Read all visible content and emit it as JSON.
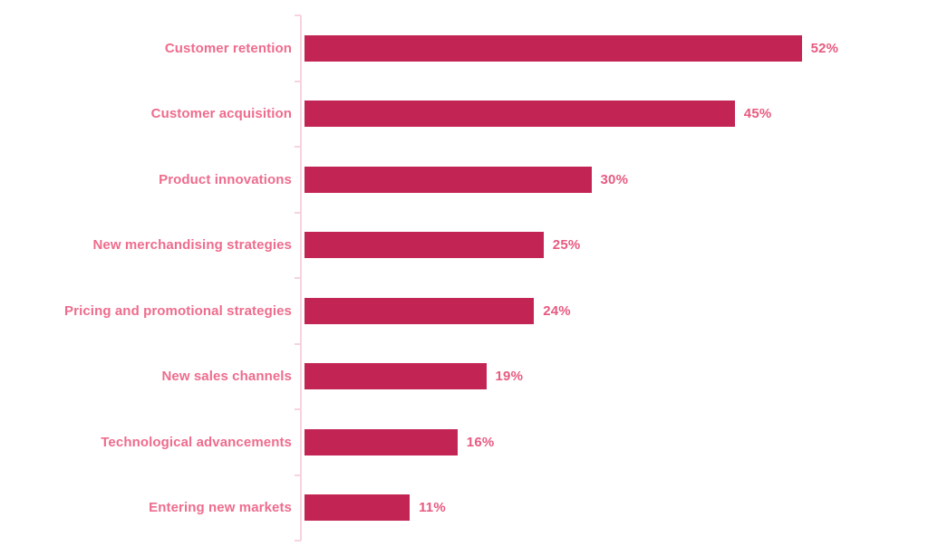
{
  "chart_data": {
    "type": "bar",
    "orientation": "horizontal",
    "title": "",
    "xlabel": "",
    "ylabel": "",
    "categories": [
      "Customer retention",
      "Customer acquisition",
      "Product innovations",
      "New merchandising strategies",
      "Pricing and promotional strategies",
      "New sales channels",
      "Technological advancements",
      "Entering new markets"
    ],
    "values": [
      52,
      45,
      30,
      25,
      24,
      19,
      16,
      11
    ],
    "value_labels": [
      "52%",
      "45%",
      "30%",
      "25%",
      "24%",
      "19%",
      "16%",
      "11%"
    ],
    "xlim": [
      0,
      60
    ],
    "grid": false,
    "legend": false,
    "colors": {
      "bar_fill": "#C22453",
      "category_label": "#EE6C8D",
      "value_label": "#E85A80",
      "axis_line": "#F6D3DD",
      "background": "#FFFFFF"
    }
  }
}
